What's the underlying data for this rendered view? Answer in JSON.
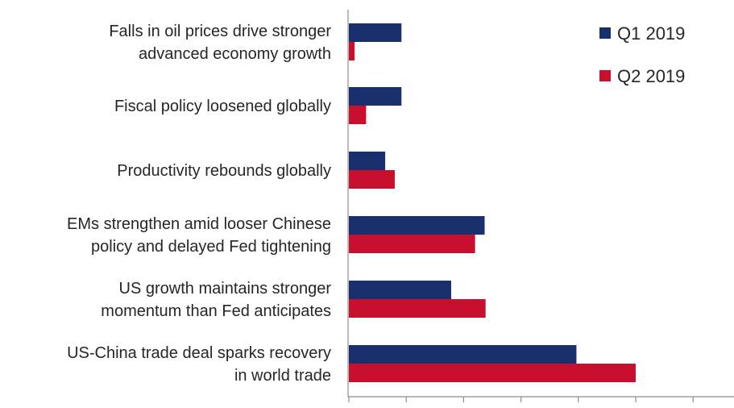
{
  "chart_data": {
    "type": "bar",
    "orientation": "horizontal",
    "title": "",
    "xlabel": "",
    "ylabel": "",
    "xlim": [
      0,
      60
    ],
    "categories": [
      [
        "Falls in oil prices drive stronger",
        "advanced economy growth"
      ],
      [
        "Fiscal policy loosened globally"
      ],
      [
        "Productivity rebounds globally"
      ],
      [
        "EMs strengthen amid looser Chinese",
        "policy and delayed Fed tightening"
      ],
      [
        "US growth maintains stronger",
        "momentum than Fed anticipates"
      ],
      [
        "US-China trade deal sparks recovery",
        "in world trade"
      ]
    ],
    "series": [
      {
        "name": "Q1 2019",
        "color": "#1a2f6e",
        "values": [
          5.5,
          5.5,
          3.8,
          14.2,
          10.7,
          23.8
        ]
      },
      {
        "name": "Q2 2019",
        "color": "#c8102e",
        "values": [
          0.6,
          1.8,
          4.8,
          13.2,
          14.3,
          30.0
        ]
      }
    ],
    "grid": false,
    "legend": "top-right"
  }
}
